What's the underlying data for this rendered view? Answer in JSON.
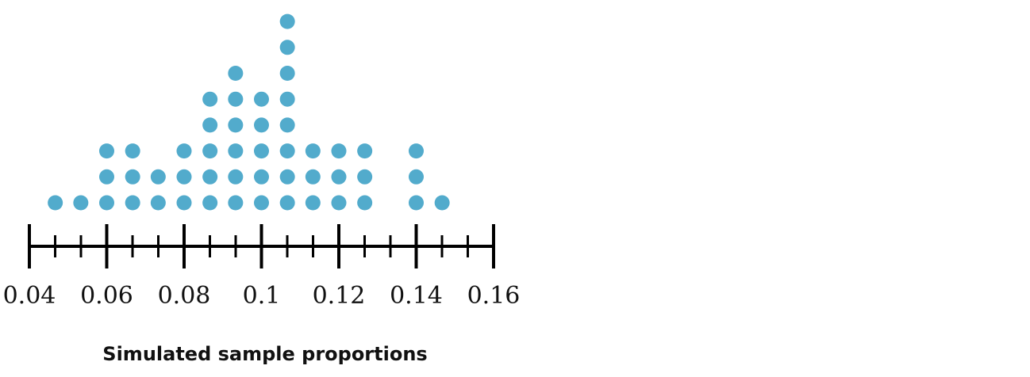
{
  "chart_data": {
    "type": "dotplot",
    "xlabel": "Simulated sample proportions",
    "xlim": [
      0.04,
      0.16
    ],
    "major_ticks": [
      0.04,
      0.06,
      0.08,
      0.1,
      0.12,
      0.14,
      0.16
    ],
    "tick_labels": [
      "0.04",
      "0.06",
      "0.08",
      "0.1",
      "0.12",
      "0.14",
      "0.16"
    ],
    "minor_step": 0.00667,
    "dot_color": "#52abcc",
    "axis_color": "#000000",
    "points": [
      {
        "x": 0.0467,
        "count": 1
      },
      {
        "x": 0.0533,
        "count": 1
      },
      {
        "x": 0.06,
        "count": 3
      },
      {
        "x": 0.0667,
        "count": 3
      },
      {
        "x": 0.0733,
        "count": 2
      },
      {
        "x": 0.08,
        "count": 3
      },
      {
        "x": 0.0867,
        "count": 5
      },
      {
        "x": 0.0933,
        "count": 6
      },
      {
        "x": 0.1,
        "count": 5
      },
      {
        "x": 0.1067,
        "count": 8
      },
      {
        "x": 0.1133,
        "count": 3
      },
      {
        "x": 0.12,
        "count": 3
      },
      {
        "x": 0.1267,
        "count": 3
      },
      {
        "x": 0.14,
        "count": 3
      },
      {
        "x": 0.1467,
        "count": 1
      }
    ]
  }
}
